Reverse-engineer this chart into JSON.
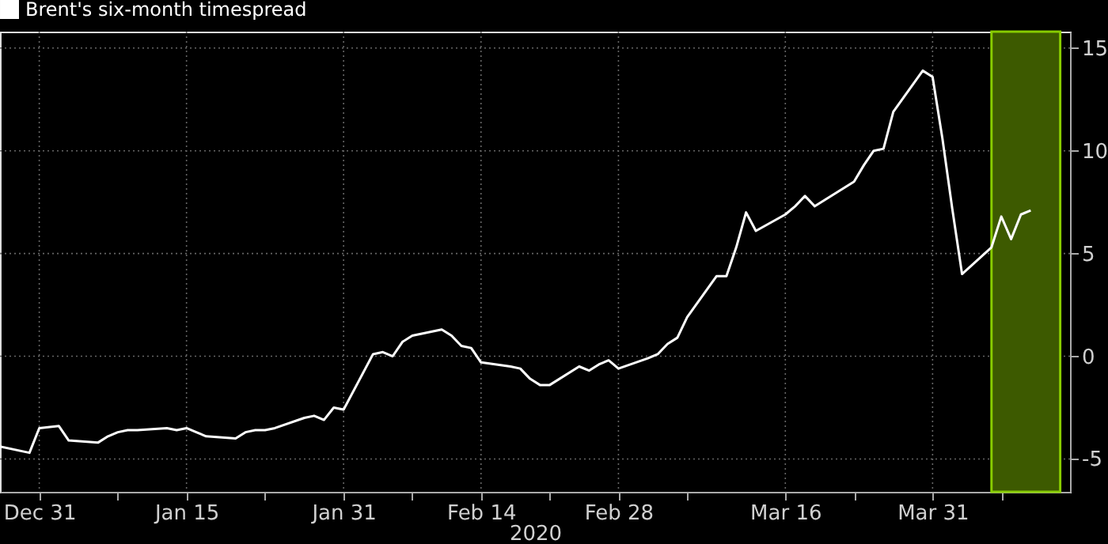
{
  "chart_data": {
    "type": "line",
    "legend": "top left",
    "grid": true,
    "xlabel": "2020",
    "x": [
      "2019-12-27",
      "2019-12-30",
      "2019-12-31",
      "2020-01-02",
      "2020-01-03",
      "2020-01-06",
      "2020-01-07",
      "2020-01-08",
      "2020-01-09",
      "2020-01-10",
      "2020-01-13",
      "2020-01-14",
      "2020-01-15",
      "2020-01-16",
      "2020-01-17",
      "2020-01-20",
      "2020-01-21",
      "2020-01-22",
      "2020-01-23",
      "2020-01-24",
      "2020-01-27",
      "2020-01-28",
      "2020-01-29",
      "2020-01-30",
      "2020-01-31",
      "2020-02-03",
      "2020-02-04",
      "2020-02-05",
      "2020-02-06",
      "2020-02-07",
      "2020-02-10",
      "2020-02-11",
      "2020-02-12",
      "2020-02-13",
      "2020-02-14",
      "2020-02-17",
      "2020-02-18",
      "2020-02-19",
      "2020-02-20",
      "2020-02-21",
      "2020-02-24",
      "2020-02-25",
      "2020-02-26",
      "2020-02-27",
      "2020-02-28",
      "2020-03-02",
      "2020-03-03",
      "2020-03-04",
      "2020-03-05",
      "2020-03-06",
      "2020-03-09",
      "2020-03-10",
      "2020-03-11",
      "2020-03-12",
      "2020-03-13",
      "2020-03-16",
      "2020-03-17",
      "2020-03-18",
      "2020-03-19",
      "2020-03-20",
      "2020-03-23",
      "2020-03-24",
      "2020-03-25",
      "2020-03-26",
      "2020-03-27",
      "2020-03-30",
      "2020-03-31",
      "2020-04-01",
      "2020-04-02",
      "2020-04-03",
      "2020-04-06",
      "2020-04-07",
      "2020-04-08",
      "2020-04-09",
      "2020-04-10"
    ],
    "series": [
      {
        "name": "Brent's six-month timespread",
        "color": "#ffffff",
        "values": [
          -4.4,
          -4.7,
          -3.5,
          -3.4,
          -4.1,
          -4.2,
          -3.9,
          -3.7,
          -3.6,
          -3.6,
          -3.5,
          -3.6,
          -3.5,
          -3.7,
          -3.9,
          -4.0,
          -3.7,
          -3.6,
          -3.6,
          -3.5,
          -3.0,
          -2.9,
          -3.1,
          -2.5,
          -2.6,
          0.1,
          0.2,
          0.0,
          0.7,
          1.0,
          1.3,
          1.0,
          0.5,
          0.4,
          -0.3,
          -0.5,
          -0.6,
          -1.1,
          -1.4,
          -1.4,
          -0.5,
          -0.7,
          -0.4,
          -0.2,
          -0.6,
          -0.1,
          0.1,
          0.6,
          0.9,
          1.9,
          3.9,
          3.9,
          5.3,
          7.0,
          6.1,
          6.9,
          7.3,
          7.8,
          7.3,
          7.6,
          8.5,
          9.3,
          10.0,
          10.1,
          11.9,
          13.9,
          13.6,
          10.6,
          7.2,
          4.0,
          5.3,
          6.8,
          5.7,
          6.9,
          7.1
        ]
      }
    ],
    "xlim": [
      "2019-12-27",
      "2020-04-14"
    ],
    "xticks": [
      {
        "value": "2019-12-31",
        "label": "Dec 31"
      },
      {
        "value": "2020-01-08",
        "label": null
      },
      {
        "value": "2020-01-15",
        "label": "Jan 15"
      },
      {
        "value": "2020-01-23",
        "label": null
      },
      {
        "value": "2020-01-31",
        "label": "Jan 31"
      },
      {
        "value": "2020-02-07",
        "label": null
      },
      {
        "value": "2020-02-14",
        "label": "Feb 14"
      },
      {
        "value": "2020-02-21",
        "label": null
      },
      {
        "value": "2020-02-28",
        "label": "Feb 28"
      },
      {
        "value": "2020-03-06",
        "label": null
      },
      {
        "value": "2020-03-16",
        "label": "Mar 16"
      },
      {
        "value": "2020-03-23",
        "label": null
      },
      {
        "value": "2020-03-31",
        "label": "Mar 31"
      },
      {
        "value": "2020-04-07",
        "label": null
      }
    ],
    "ylim": [
      -6.6,
      15.8
    ],
    "yticks": [
      -5,
      0,
      5,
      10,
      15
    ],
    "bands": [
      {
        "axis": "x",
        "from": "2020-04-06",
        "to": "2020-04-13",
        "color": "#3d5a00"
      }
    ]
  }
}
